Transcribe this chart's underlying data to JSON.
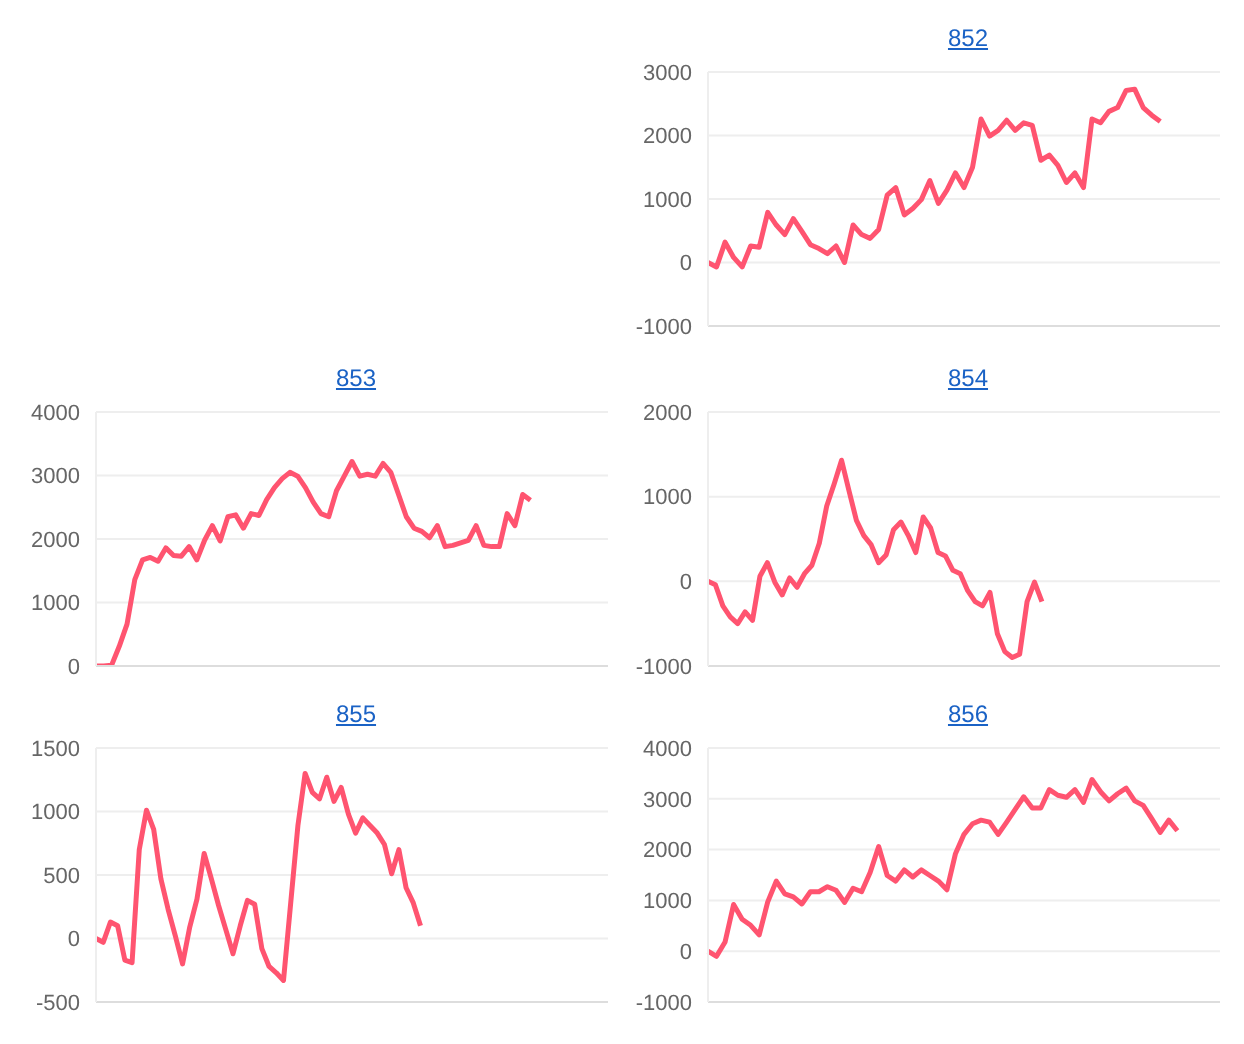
{
  "chart_data": [
    {
      "type": "line",
      "title": "852",
      "grid": "y",
      "tick_labels": "y",
      "marker": "none",
      "line_style": "solid",
      "ylim": [
        -1000,
        3000
      ],
      "yticks": [
        -1000,
        0,
        1000,
        2000,
        3000
      ],
      "categories": [
        null,
        null,
        null,
        null,
        null,
        null,
        null,
        null,
        null,
        null,
        null,
        null,
        null,
        null,
        null,
        null,
        null,
        null,
        null,
        null,
        null,
        null,
        null,
        null,
        null,
        null,
        null,
        null,
        null,
        null,
        null,
        null,
        null,
        null,
        null,
        null,
        null,
        null,
        null,
        null,
        null,
        null,
        null,
        null,
        null,
        null,
        null,
        null,
        null,
        null,
        null,
        null,
        null,
        null,
        null,
        null,
        null,
        null,
        null,
        null,
        null
      ],
      "series": [
        {
          "color": "#ff5470",
          "values": [
            0,
            -70,
            320,
            80,
            -70,
            260,
            240,
            790,
            590,
            440,
            690,
            490,
            280,
            220,
            140,
            260,
            0,
            590,
            440,
            380,
            520,
            1060,
            1180,
            750,
            850,
            990,
            1290,
            930,
            1140,
            1410,
            1180,
            1500,
            2260,
            1990,
            2080,
            2240,
            2080,
            2200,
            2160,
            1610,
            1690,
            1530,
            1260,
            1410,
            1180,
            2260,
            2200,
            2380,
            2440,
            2710,
            2730,
            2440,
            2320,
            2220,
            null,
            null,
            null,
            null,
            null,
            null,
            null
          ]
        }
      ]
    },
    {
      "type": "line",
      "title": "853",
      "grid": "y",
      "tick_labels": "y",
      "marker": "none",
      "line_style": "solid",
      "ylim": [
        0,
        4000
      ],
      "yticks": [
        0,
        1000,
        2000,
        3000,
        4000
      ],
      "categories": [
        null,
        null,
        null,
        null,
        null,
        null,
        null,
        null,
        null,
        null,
        null,
        null,
        null,
        null,
        null,
        null,
        null,
        null,
        null,
        null,
        null,
        null,
        null,
        null,
        null,
        null,
        null,
        null,
        null,
        null,
        null,
        null,
        null,
        null,
        null,
        null,
        null,
        null,
        null,
        null,
        null,
        null,
        null,
        null,
        null,
        null,
        null,
        null,
        null,
        null,
        null,
        null,
        null,
        null,
        null,
        null,
        null,
        null,
        null,
        null,
        null,
        null,
        null,
        null,
        null,
        null,
        null
      ],
      "series": [
        {
          "color": "#ff5470",
          "values": [
            0,
            0,
            10,
            310,
            660,
            1360,
            1670,
            1710,
            1650,
            1860,
            1740,
            1730,
            1880,
            1670,
            1980,
            2210,
            1970,
            2350,
            2380,
            2170,
            2400,
            2370,
            2620,
            2810,
            2950,
            3050,
            2990,
            2810,
            2580,
            2400,
            2350,
            2760,
            2990,
            3220,
            2990,
            3020,
            2990,
            3190,
            3050,
            2700,
            2350,
            2170,
            2120,
            2020,
            2210,
            1880,
            1900,
            1940,
            1980,
            2210,
            1900,
            1880,
            1880,
            2400,
            2210,
            2700,
            2610,
            null,
            null,
            null,
            null,
            null,
            null,
            null,
            null,
            null,
            null
          ]
        }
      ]
    },
    {
      "type": "line",
      "title": "854",
      "grid": "y",
      "tick_labels": "y",
      "marker": "none",
      "line_style": "solid",
      "ylim": [
        -1000,
        2000
      ],
      "yticks": [
        -1000,
        0,
        1000,
        2000
      ],
      "categories": [
        null,
        null,
        null,
        null,
        null,
        null,
        null,
        null,
        null,
        null,
        null,
        null,
        null,
        null,
        null,
        null,
        null,
        null,
        null,
        null,
        null,
        null,
        null,
        null,
        null,
        null,
        null,
        null,
        null,
        null,
        null,
        null,
        null,
        null,
        null,
        null,
        null,
        null,
        null,
        null,
        null,
        null,
        null,
        null,
        null,
        null,
        null,
        null,
        null,
        null,
        null,
        null,
        null,
        null,
        null,
        null,
        null,
        null,
        null,
        null,
        null,
        null,
        null,
        null,
        null,
        null,
        null,
        null,
        null,
        null
      ],
      "series": [
        {
          "color": "#ff5470",
          "values": [
            0,
            -40,
            -290,
            -420,
            -500,
            -360,
            -460,
            60,
            220,
            -10,
            -160,
            40,
            -70,
            90,
            190,
            450,
            890,
            1150,
            1430,
            1070,
            720,
            540,
            430,
            220,
            310,
            610,
            700,
            540,
            340,
            760,
            630,
            340,
            300,
            130,
            90,
            -110,
            -240,
            -290,
            -130,
            -620,
            -830,
            -900,
            -860,
            -240,
            -10,
            -240,
            null,
            null,
            null,
            null,
            null,
            null,
            null,
            null,
            null,
            null,
            null,
            null,
            null,
            null,
            null,
            null,
            null,
            null,
            null,
            null,
            null,
            null,
            null,
            null
          ]
        }
      ]
    },
    {
      "type": "line",
      "title": "855",
      "grid": "y",
      "tick_labels": "y",
      "marker": "none",
      "line_style": "solid",
      "ylim": [
        -500,
        1500
      ],
      "yticks": [
        -500,
        0,
        500,
        1000,
        1500
      ],
      "categories": [
        null,
        null,
        null,
        null,
        null,
        null,
        null,
        null,
        null,
        null,
        null,
        null,
        null,
        null,
        null,
        null,
        null,
        null,
        null,
        null,
        null,
        null,
        null,
        null,
        null,
        null,
        null,
        null,
        null,
        null,
        null,
        null,
        null,
        null,
        null,
        null,
        null,
        null,
        null,
        null,
        null,
        null,
        null,
        null,
        null,
        null,
        null,
        null,
        null,
        null,
        null,
        null,
        null,
        null,
        null,
        null,
        null,
        null,
        null,
        null,
        null,
        null,
        null,
        null,
        null,
        null,
        null,
        null,
        null,
        null,
        null,
        null
      ],
      "series": [
        {
          "color": "#ff5470",
          "values": [
            0,
            -30,
            130,
            100,
            -170,
            -190,
            700,
            1010,
            860,
            470,
            230,
            20,
            -200,
            90,
            310,
            670,
            470,
            260,
            70,
            -120,
            100,
            300,
            270,
            -80,
            -220,
            -270,
            -330,
            280,
            890,
            1300,
            1150,
            1100,
            1270,
            1080,
            1190,
            980,
            830,
            950,
            890,
            830,
            740,
            510,
            700,
            400,
            280,
            100,
            null,
            null,
            null,
            null,
            null,
            null,
            null,
            null,
            null,
            null,
            null,
            null,
            null,
            null,
            null,
            null,
            null,
            null,
            null,
            null,
            null,
            null,
            null,
            null,
            null,
            null
          ]
        }
      ]
    },
    {
      "type": "line",
      "title": "856",
      "grid": "y",
      "tick_labels": "y",
      "marker": "none",
      "line_style": "solid",
      "ylim": [
        -1000,
        4000
      ],
      "yticks": [
        -1000,
        0,
        1000,
        2000,
        3000,
        4000
      ],
      "categories": [
        null,
        null,
        null,
        null,
        null,
        null,
        null,
        null,
        null,
        null,
        null,
        null,
        null,
        null,
        null,
        null,
        null,
        null,
        null,
        null,
        null,
        null,
        null,
        null,
        null,
        null,
        null,
        null,
        null,
        null,
        null,
        null,
        null,
        null,
        null,
        null,
        null,
        null,
        null,
        null,
        null,
        null,
        null,
        null,
        null,
        null,
        null,
        null,
        null,
        null,
        null,
        null,
        null,
        null,
        null,
        null,
        null,
        null,
        null,
        null,
        null
      ],
      "series": [
        {
          "color": "#ff5470",
          "values": [
            0,
            -100,
            180,
            920,
            630,
            510,
            320,
            970,
            1380,
            1130,
            1070,
            930,
            1170,
            1170,
            1270,
            1200,
            960,
            1240,
            1170,
            1550,
            2060,
            1490,
            1380,
            1600,
            1460,
            1600,
            1490,
            1380,
            1210,
            1920,
            2300,
            2510,
            2580,
            2540,
            2300,
            2540,
            2790,
            3040,
            2820,
            2820,
            3180,
            3070,
            3030,
            3180,
            2930,
            3380,
            3140,
            2960,
            3100,
            3210,
            2960,
            2870,
            2610,
            2340,
            2580,
            2370,
            null,
            null,
            null,
            null,
            null
          ]
        }
      ]
    }
  ]
}
